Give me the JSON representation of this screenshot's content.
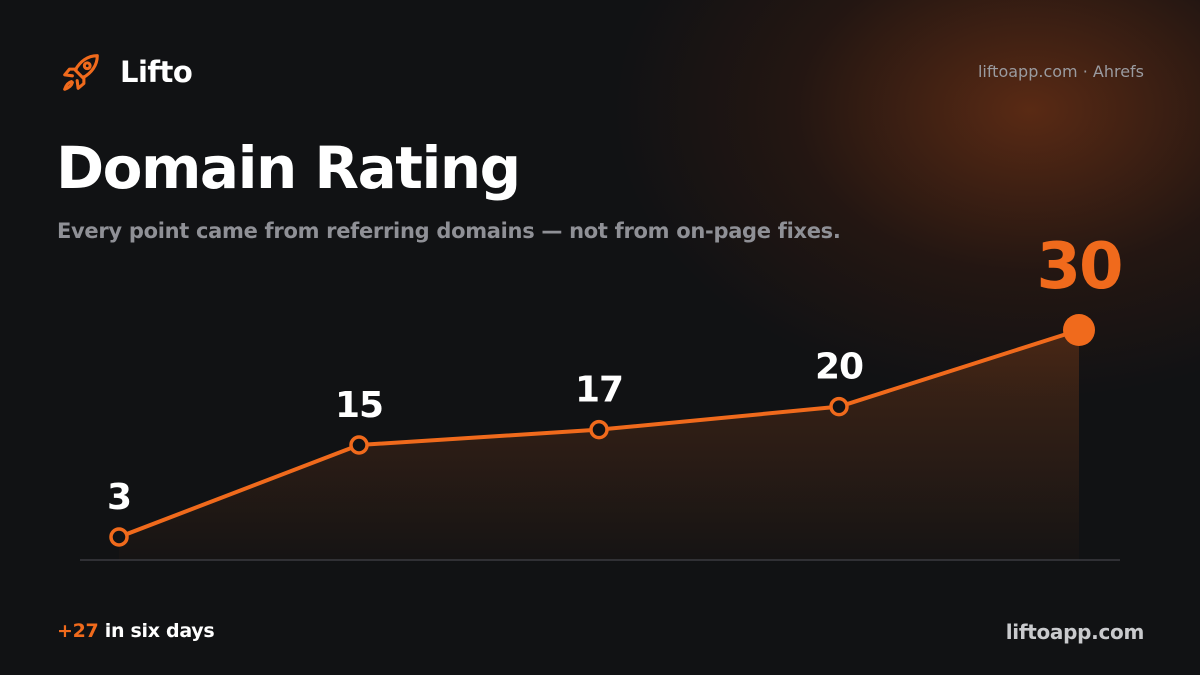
{
  "brand": {
    "name": "Lifto",
    "logo_icon": "rocket-icon"
  },
  "source": "liftoapp.com · Ahrefs",
  "colors": {
    "accent": "#f06a1c",
    "background": "#111214",
    "baseline": "#3a3b40"
  },
  "chart_data": {
    "type": "line",
    "title": "Domain Rating",
    "subtitle": "Every point came from referring domains — not from on-page fixes.",
    "xlabel": "",
    "ylabel": "",
    "series": [
      {
        "values": [
          3,
          15,
          17,
          20,
          30
        ]
      }
    ],
    "data_labels": [
      "3",
      "15",
      "17",
      "20",
      "30"
    ],
    "ylim": [
      0,
      30
    ],
    "grid": false,
    "highlight_last_point": true
  },
  "footer": {
    "change": "+27",
    "change_text": " in six days",
    "url": "liftoapp.com"
  }
}
